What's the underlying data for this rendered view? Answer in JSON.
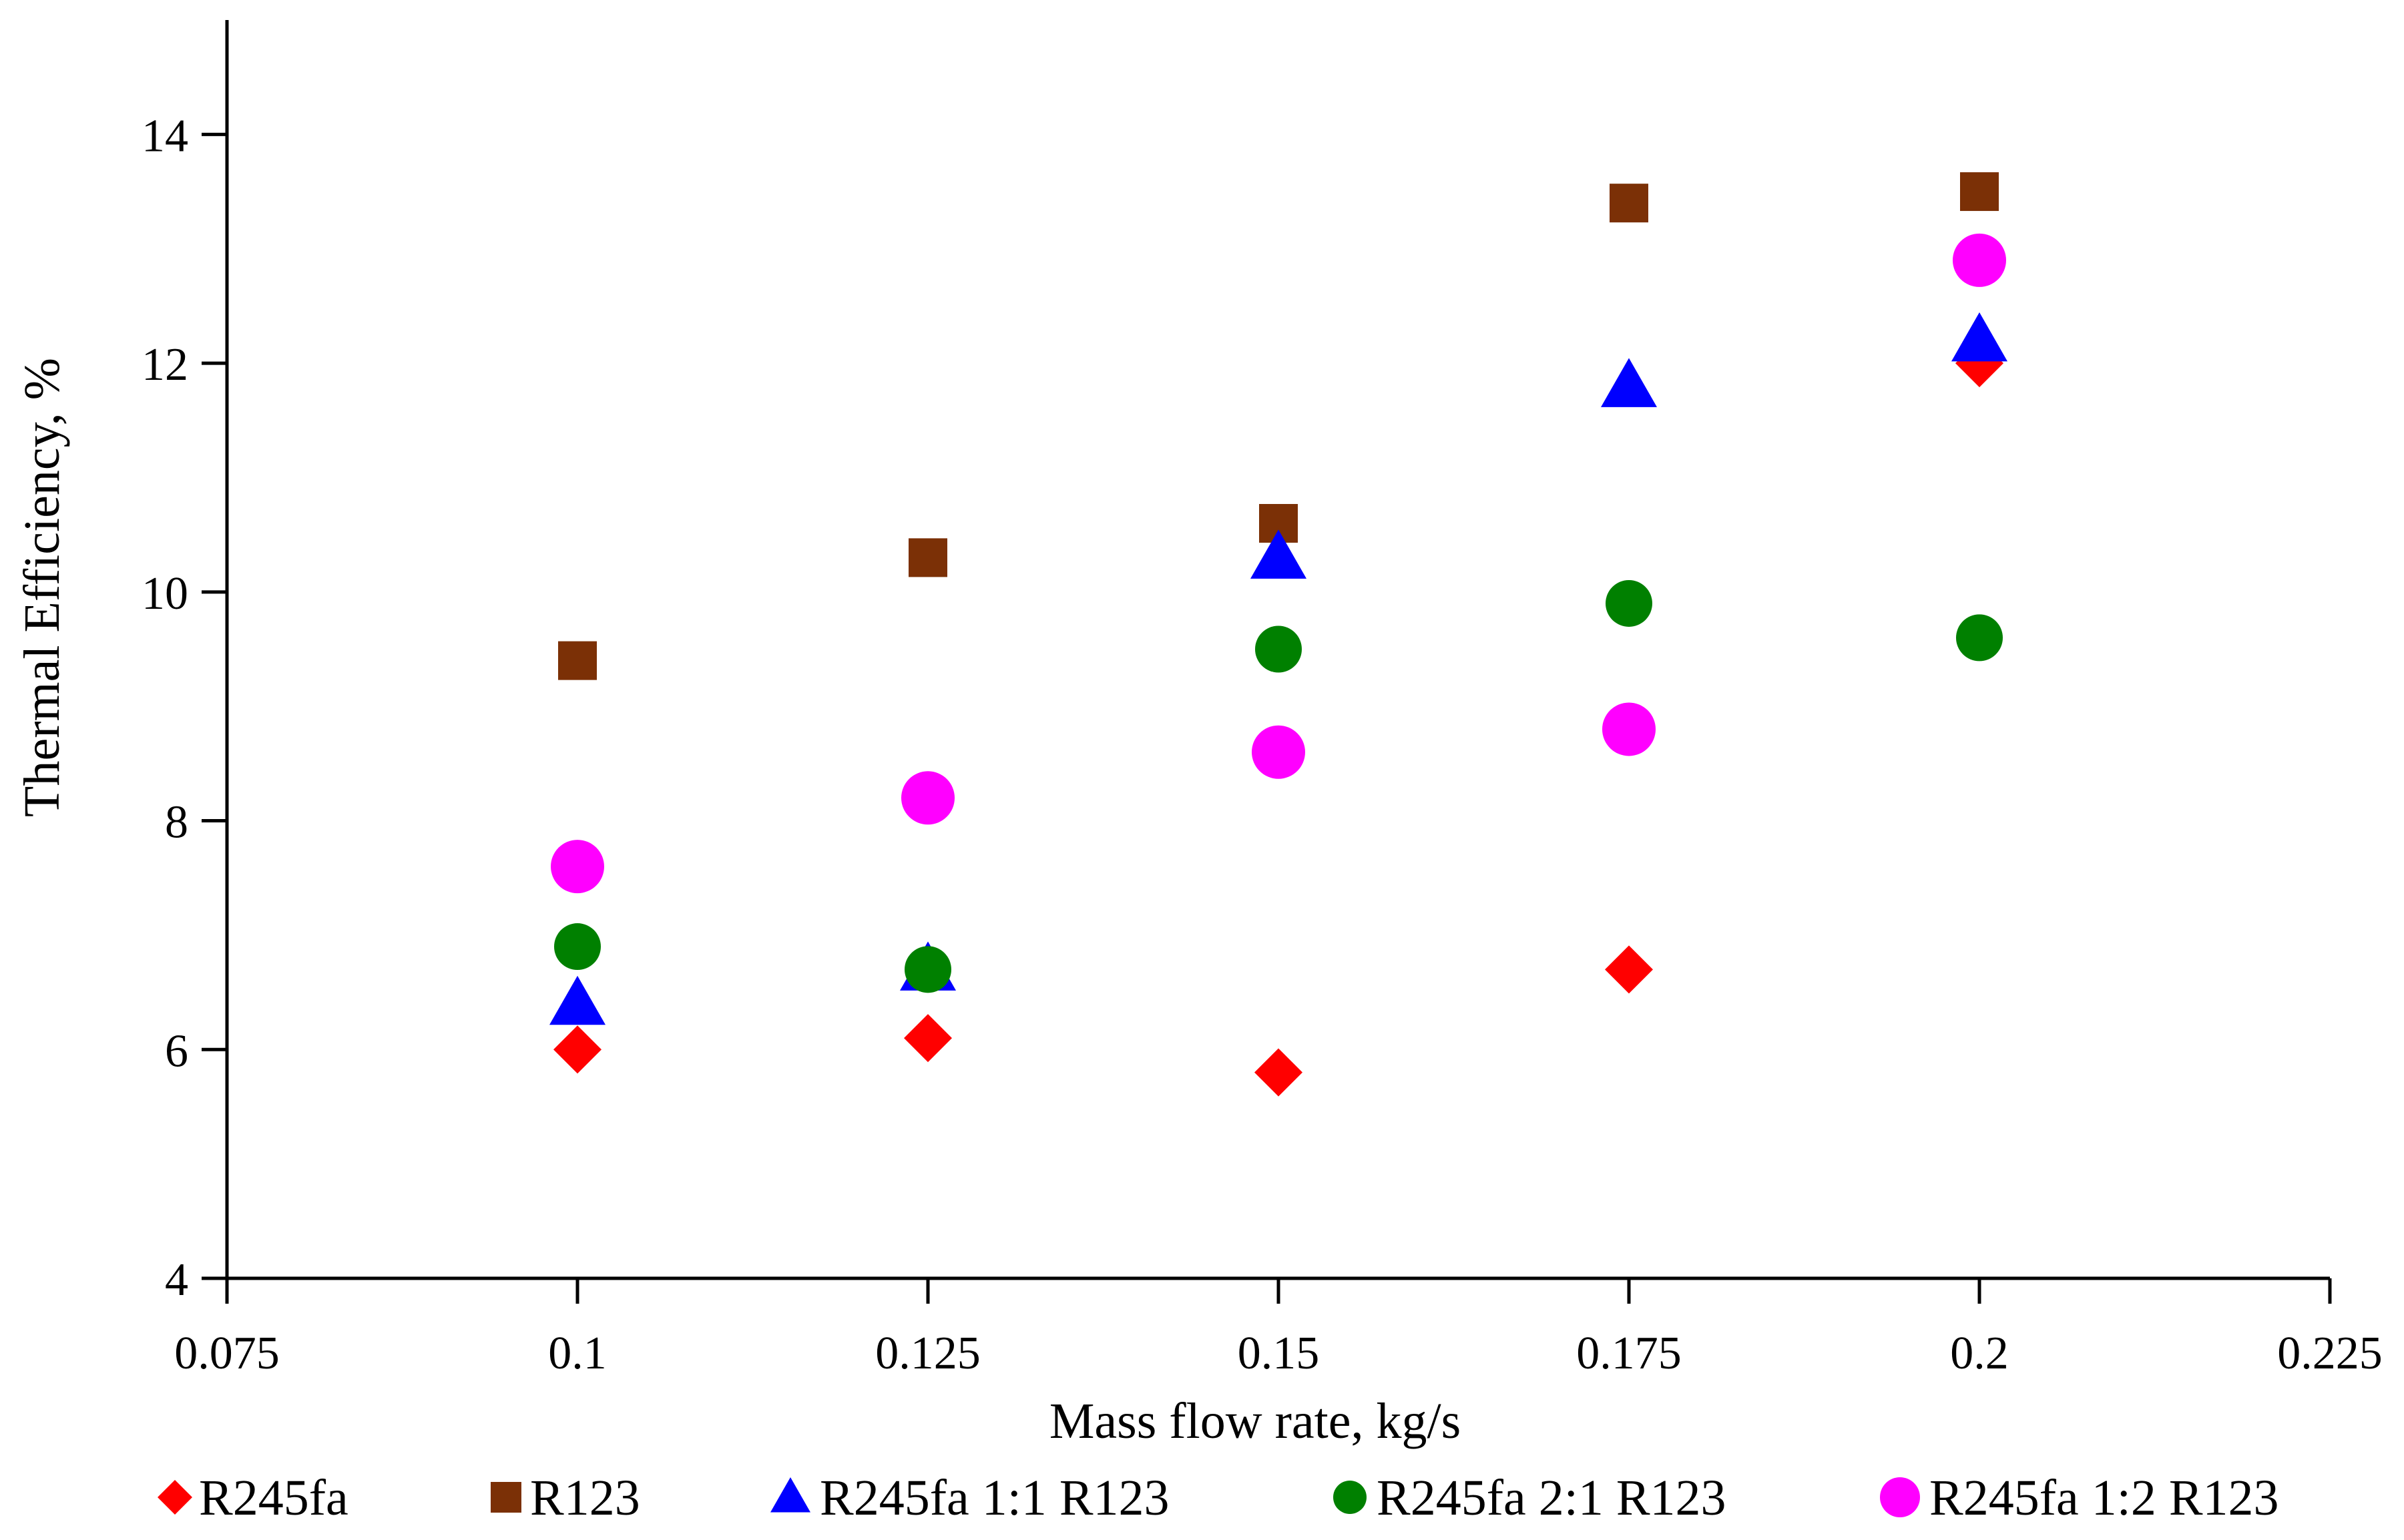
{
  "chart_data": {
    "type": "scatter",
    "title": "",
    "xlabel": "Mass flow rate, kg/s",
    "ylabel": "Thermal Efficiency, %",
    "xlim": [
      0.075,
      0.225
    ],
    "ylim": [
      4,
      15
    ],
    "x_ticks": [
      0.075,
      0.1,
      0.125,
      0.15,
      0.175,
      0.2,
      0.225
    ],
    "x_tick_labels": [
      "0.075",
      "0.1",
      "0.125",
      "0.15",
      "0.175",
      "0.2",
      "0.225"
    ],
    "y_ticks": [
      4,
      6,
      8,
      10,
      12,
      14
    ],
    "y_tick_labels": [
      "4",
      "6",
      "8",
      "10",
      "12",
      "14"
    ],
    "grid": false,
    "legend_position": "bottom",
    "x": [
      0.1,
      0.125,
      0.15,
      0.175,
      0.2
    ],
    "series": [
      {
        "name": "R245fa",
        "marker": "diamond",
        "color": "#ff0000",
        "values": [
          6.0,
          6.1,
          5.8,
          6.7,
          12.0
        ]
      },
      {
        "name": "R123",
        "marker": "square",
        "color": "#7b3006",
        "values": [
          9.4,
          10.3,
          10.6,
          13.4,
          13.5
        ]
      },
      {
        "name": "R245fa 1:1 R123",
        "marker": "triangle",
        "color": "#0000ff",
        "values": [
          6.4,
          6.7,
          10.3,
          11.8,
          12.2
        ]
      },
      {
        "name": "R245fa 2:1 R123",
        "marker": "circle",
        "color": "#008000",
        "values": [
          6.9,
          6.7,
          9.5,
          9.9,
          9.6
        ]
      },
      {
        "name": "R245fa 1:2 R123",
        "marker": "circle",
        "color": "#ff00ff",
        "values": [
          7.6,
          8.2,
          8.6,
          8.8,
          12.9
        ]
      }
    ]
  }
}
